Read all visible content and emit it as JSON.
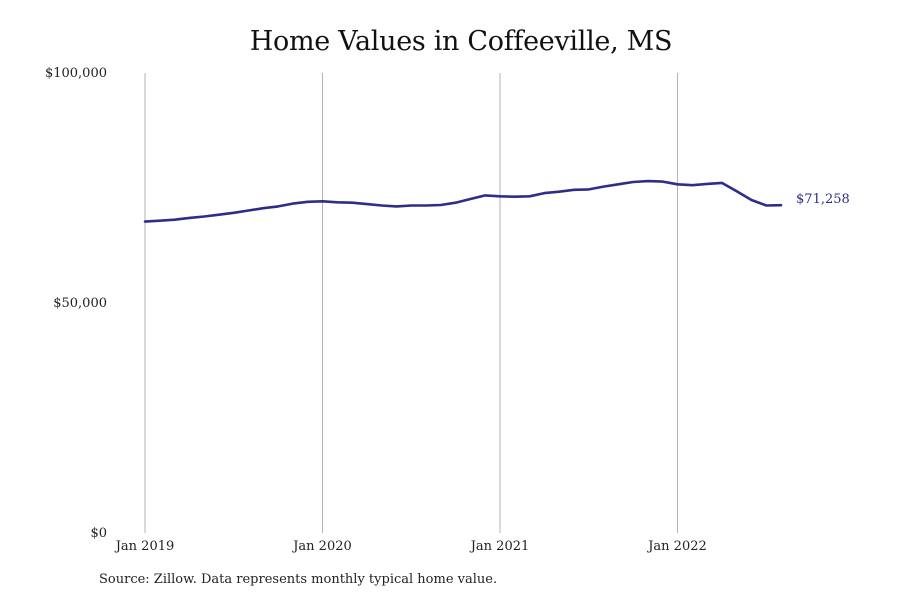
{
  "chart_data": {
    "type": "line",
    "title": "Home Values in Coffeeville, MS",
    "xlabel": "",
    "ylabel": "",
    "ylim": [
      0,
      100000
    ],
    "y_ticks": [
      {
        "value": 0,
        "label": "$0"
      },
      {
        "value": 50000,
        "label": "$50,000"
      },
      {
        "value": 100000,
        "label": "$100,000"
      }
    ],
    "x_ticks": [
      {
        "value": "2019-01",
        "label": "Jan 2019"
      },
      {
        "value": "2020-01",
        "label": "Jan 2020"
      },
      {
        "value": "2021-01",
        "label": "Jan 2021"
      },
      {
        "value": "2022-01",
        "label": "Jan 2022"
      }
    ],
    "grid": "vertical at x ticks",
    "series": [
      {
        "color": "#2e2d8a",
        "end_label": "$71,258",
        "x": [
          "2019-01",
          "2019-02",
          "2019-03",
          "2019-04",
          "2019-05",
          "2019-06",
          "2019-07",
          "2019-08",
          "2019-09",
          "2019-10",
          "2019-11",
          "2019-12",
          "2020-01",
          "2020-02",
          "2020-03",
          "2020-04",
          "2020-05",
          "2020-06",
          "2020-07",
          "2020-08",
          "2020-09",
          "2020-10",
          "2020-11",
          "2020-12",
          "2021-01",
          "2021-02",
          "2021-03",
          "2021-04",
          "2021-05",
          "2021-06",
          "2021-07",
          "2021-08",
          "2021-09",
          "2021-10",
          "2021-11",
          "2021-12",
          "2022-01",
          "2022-02",
          "2022-03",
          "2022-04",
          "2022-05",
          "2022-06",
          "2022-07",
          "2022-08"
        ],
        "values": [
          67700,
          67900,
          68100,
          68500,
          68800,
          69200,
          69600,
          70100,
          70600,
          71000,
          71600,
          72000,
          72100,
          71900,
          71800,
          71500,
          71200,
          71000,
          71200,
          71200,
          71300,
          71800,
          72600,
          73400,
          73200,
          73100,
          73200,
          73900,
          74200,
          74600,
          74700,
          75300,
          75800,
          76300,
          76500,
          76400,
          75800,
          75600,
          75900,
          76100,
          74300,
          72400,
          71200,
          71258
        ]
      }
    ]
  },
  "source_note": "Source: Zillow. Data represents monthly typical home value."
}
